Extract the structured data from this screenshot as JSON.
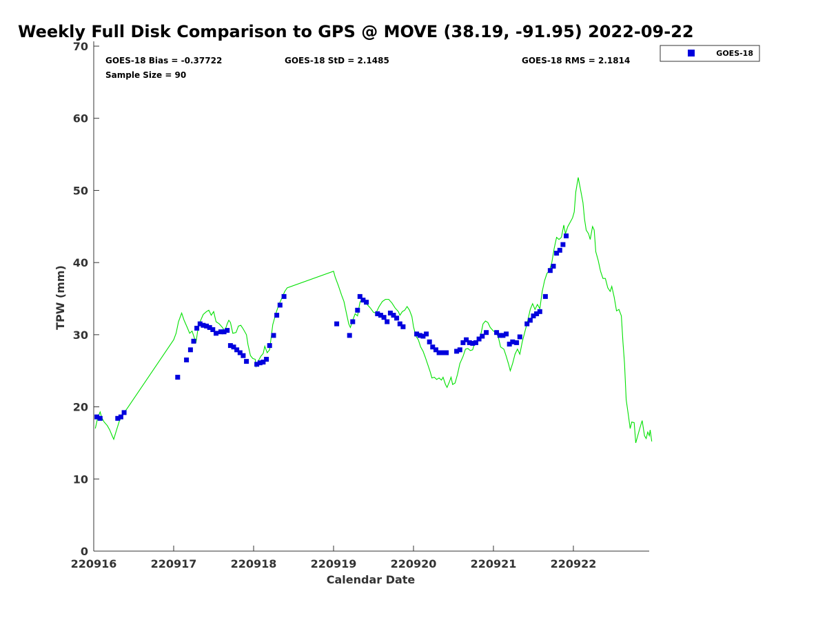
{
  "chart_data": {
    "type": "scatter",
    "title": "Weekly Full Disk Comparison to GPS @ MOVE (38.19, -91.95) 2022-09-22",
    "xlabel": "Calendar Date",
    "ylabel": "TPW (mm)",
    "xlim": [
      0,
      6.95
    ],
    "ylim": [
      0,
      70
    ],
    "x_unit_note": "",
    "x_ticks": [
      {
        "value": 0,
        "label": "220916"
      },
      {
        "value": 1,
        "label": "220917"
      },
      {
        "value": 2,
        "label": "220918"
      },
      {
        "value": 3,
        "label": "220919"
      },
      {
        "value": 4,
        "label": "220920"
      },
      {
        "value": 5,
        "label": "220921"
      },
      {
        "value": 6,
        "label": "220922"
      }
    ],
    "y_ticks": [
      0,
      10,
      20,
      30,
      40,
      50,
      60,
      70
    ],
    "grid": false,
    "legend": {
      "position": "outside-top-right",
      "entries": [
        {
          "label": "GOES-18",
          "color": "#0000dd",
          "marker": "square"
        }
      ]
    },
    "stats": {
      "bias": "GOES-18 Bias = -0.37722",
      "std": "GOES-18 StD = 2.1485",
      "rms": "GOES-18 RMS = 2.1814",
      "sample_size": "Sample Size = 90"
    },
    "series": [
      {
        "name": "GOES-18",
        "kind": "scatter",
        "color": "#0000dd",
        "points": [
          [
            0.04,
            18.6
          ],
          [
            0.08,
            18.4
          ],
          [
            0.3,
            18.4
          ],
          [
            0.34,
            18.6
          ],
          [
            0.38,
            19.2
          ],
          [
            1.05,
            24.1
          ],
          [
            1.16,
            26.5
          ],
          [
            1.21,
            27.9
          ],
          [
            1.25,
            29.1
          ],
          [
            1.29,
            30.9
          ],
          [
            1.33,
            31.5
          ],
          [
            1.37,
            31.3
          ],
          [
            1.41,
            31.2
          ],
          [
            1.45,
            31.0
          ],
          [
            1.49,
            30.7
          ],
          [
            1.53,
            30.2
          ],
          [
            1.59,
            30.4
          ],
          [
            1.63,
            30.4
          ],
          [
            1.67,
            30.6
          ],
          [
            1.71,
            28.5
          ],
          [
            1.75,
            28.3
          ],
          [
            1.79,
            27.9
          ],
          [
            1.83,
            27.5
          ],
          [
            1.87,
            27.1
          ],
          [
            1.91,
            26.3
          ],
          [
            2.04,
            25.9
          ],
          [
            2.08,
            26.1
          ],
          [
            2.12,
            26.2
          ],
          [
            2.16,
            26.6
          ],
          [
            2.2,
            28.5
          ],
          [
            2.25,
            29.9
          ],
          [
            2.29,
            32.7
          ],
          [
            2.33,
            34.1
          ],
          [
            2.38,
            35.3
          ],
          [
            3.04,
            31.5
          ],
          [
            3.2,
            29.9
          ],
          [
            3.24,
            31.8
          ],
          [
            3.3,
            33.4
          ],
          [
            3.33,
            35.3
          ],
          [
            3.37,
            34.8
          ],
          [
            3.41,
            34.5
          ],
          [
            3.55,
            32.9
          ],
          [
            3.59,
            32.7
          ],
          [
            3.63,
            32.4
          ],
          [
            3.67,
            31.8
          ],
          [
            3.71,
            33.0
          ],
          [
            3.75,
            32.7
          ],
          [
            3.79,
            32.3
          ],
          [
            3.83,
            31.5
          ],
          [
            3.87,
            31.1
          ],
          [
            4.04,
            30.1
          ],
          [
            4.08,
            29.9
          ],
          [
            4.12,
            29.8
          ],
          [
            4.16,
            30.1
          ],
          [
            4.2,
            29.0
          ],
          [
            4.24,
            28.3
          ],
          [
            4.28,
            27.9
          ],
          [
            4.32,
            27.5
          ],
          [
            4.36,
            27.5
          ],
          [
            4.41,
            27.5
          ],
          [
            4.54,
            27.7
          ],
          [
            4.58,
            27.9
          ],
          [
            4.62,
            28.9
          ],
          [
            4.66,
            29.3
          ],
          [
            4.7,
            28.9
          ],
          [
            4.74,
            28.8
          ],
          [
            4.78,
            28.9
          ],
          [
            4.82,
            29.4
          ],
          [
            4.86,
            29.8
          ],
          [
            4.91,
            30.3
          ],
          [
            5.04,
            30.3
          ],
          [
            5.08,
            29.9
          ],
          [
            5.12,
            29.9
          ],
          [
            5.16,
            30.1
          ],
          [
            5.2,
            28.7
          ],
          [
            5.24,
            29.0
          ],
          [
            5.29,
            28.9
          ],
          [
            5.33,
            29.7
          ],
          [
            5.42,
            31.5
          ],
          [
            5.46,
            32.0
          ],
          [
            5.5,
            32.6
          ],
          [
            5.54,
            32.9
          ],
          [
            5.58,
            33.2
          ],
          [
            5.65,
            35.3
          ],
          [
            5.71,
            38.9
          ],
          [
            5.75,
            39.5
          ],
          [
            5.79,
            41.3
          ],
          [
            5.83,
            41.7
          ],
          [
            5.87,
            42.5
          ],
          [
            5.91,
            43.7
          ]
        ]
      },
      {
        "name": "",
        "kind": "line",
        "color": "#00e000",
        "points": [
          [
            0.02,
            17.0
          ],
          [
            0.05,
            18.5
          ],
          [
            0.08,
            19.3
          ],
          [
            0.1,
            18.5
          ],
          [
            0.13,
            17.9
          ],
          [
            0.17,
            17.4
          ],
          [
            0.2,
            16.8
          ],
          [
            0.23,
            16.0
          ],
          [
            0.25,
            15.5
          ],
          [
            0.28,
            16.6
          ],
          [
            0.32,
            18.0
          ],
          [
            0.36,
            18.9
          ],
          [
            0.42,
            19.8
          ],
          [
            1.0,
            29.3
          ],
          [
            1.03,
            30.2
          ],
          [
            1.06,
            31.8
          ],
          [
            1.1,
            33.0
          ],
          [
            1.13,
            32.0
          ],
          [
            1.17,
            31.0
          ],
          [
            1.2,
            30.2
          ],
          [
            1.23,
            30.5
          ],
          [
            1.26,
            29.5
          ],
          [
            1.28,
            29.0
          ],
          [
            1.3,
            30.5
          ],
          [
            1.33,
            31.8
          ],
          [
            1.37,
            32.8
          ],
          [
            1.41,
            33.2
          ],
          [
            1.44,
            33.4
          ],
          [
            1.47,
            32.7
          ],
          [
            1.5,
            33.2
          ],
          [
            1.53,
            31.8
          ],
          [
            1.57,
            31.5
          ],
          [
            1.61,
            31.0
          ],
          [
            1.64,
            30.5
          ],
          [
            1.67,
            31.5
          ],
          [
            1.69,
            32.0
          ],
          [
            1.71,
            31.7
          ],
          [
            1.74,
            30.2
          ],
          [
            1.78,
            30.3
          ],
          [
            1.81,
            31.2
          ],
          [
            1.84,
            31.3
          ],
          [
            1.87,
            30.8
          ],
          [
            1.91,
            30.0
          ],
          [
            1.93,
            28.6
          ],
          [
            1.96,
            27.1
          ],
          [
            1.99,
            26.7
          ],
          [
            2.02,
            26.6
          ],
          [
            2.03,
            25.6
          ],
          [
            2.06,
            26.4
          ],
          [
            2.09,
            27.0
          ],
          [
            2.12,
            27.4
          ],
          [
            2.14,
            28.4
          ],
          [
            2.17,
            27.5
          ],
          [
            2.2,
            27.9
          ],
          [
            2.24,
            31.4
          ],
          [
            2.28,
            33.0
          ],
          [
            2.31,
            34.0
          ],
          [
            2.35,
            35.0
          ],
          [
            2.39,
            36.0
          ],
          [
            2.42,
            36.5
          ],
          [
            3.0,
            38.8
          ],
          [
            3.02,
            38.0
          ],
          [
            3.06,
            36.8
          ],
          [
            3.1,
            35.5
          ],
          [
            3.13,
            34.6
          ],
          [
            3.16,
            33.0
          ],
          [
            3.19,
            31.5
          ],
          [
            3.21,
            31.0
          ],
          [
            3.24,
            32.0
          ],
          [
            3.27,
            32.9
          ],
          [
            3.3,
            32.6
          ],
          [
            3.33,
            34.5
          ],
          [
            3.36,
            35.0
          ],
          [
            3.39,
            34.9
          ],
          [
            3.42,
            34.2
          ],
          [
            3.46,
            33.7
          ],
          [
            3.5,
            33.1
          ],
          [
            3.53,
            33.0
          ],
          [
            3.57,
            33.9
          ],
          [
            3.61,
            34.6
          ],
          [
            3.65,
            34.9
          ],
          [
            3.69,
            34.9
          ],
          [
            3.73,
            34.4
          ],
          [
            3.77,
            33.7
          ],
          [
            3.81,
            33.2
          ],
          [
            3.83,
            32.7
          ],
          [
            3.86,
            33.2
          ],
          [
            3.89,
            33.4
          ],
          [
            3.92,
            33.9
          ],
          [
            3.95,
            33.4
          ],
          [
            3.98,
            32.5
          ],
          [
            4.0,
            31.1
          ],
          [
            4.03,
            29.8
          ],
          [
            4.06,
            29.3
          ],
          [
            4.09,
            28.3
          ],
          [
            4.12,
            27.7
          ],
          [
            4.15,
            26.8
          ],
          [
            4.18,
            25.8
          ],
          [
            4.21,
            24.8
          ],
          [
            4.23,
            24.0
          ],
          [
            4.26,
            24.1
          ],
          [
            4.29,
            23.8
          ],
          [
            4.32,
            24.0
          ],
          [
            4.35,
            23.7
          ],
          [
            4.37,
            24.1
          ],
          [
            4.4,
            23.1
          ],
          [
            4.42,
            22.7
          ],
          [
            4.45,
            23.5
          ],
          [
            4.47,
            24.1
          ],
          [
            4.49,
            23.1
          ],
          [
            4.52,
            23.3
          ],
          [
            4.55,
            24.5
          ],
          [
            4.58,
            26.0
          ],
          [
            4.62,
            27.0
          ],
          [
            4.65,
            28.0
          ],
          [
            4.68,
            28.1
          ],
          [
            4.71,
            27.8
          ],
          [
            4.74,
            27.9
          ],
          [
            4.77,
            29.0
          ],
          [
            4.81,
            29.3
          ],
          [
            4.84,
            29.9
          ],
          [
            4.87,
            31.5
          ],
          [
            4.9,
            31.9
          ],
          [
            4.93,
            31.7
          ],
          [
            4.96,
            31.0
          ],
          [
            5.0,
            30.5
          ],
          [
            5.03,
            30.3
          ],
          [
            5.06,
            29.7
          ],
          [
            5.09,
            28.3
          ],
          [
            5.13,
            28.0
          ],
          [
            5.16,
            27.0
          ],
          [
            5.19,
            25.9
          ],
          [
            5.21,
            25.0
          ],
          [
            5.24,
            26.0
          ],
          [
            5.27,
            27.3
          ],
          [
            5.3,
            28.0
          ],
          [
            5.33,
            27.3
          ],
          [
            5.36,
            29.0
          ],
          [
            5.4,
            30.7
          ],
          [
            5.43,
            32.0
          ],
          [
            5.46,
            33.5
          ],
          [
            5.49,
            34.3
          ],
          [
            5.52,
            33.5
          ],
          [
            5.55,
            34.2
          ],
          [
            5.58,
            33.6
          ],
          [
            5.61,
            36.0
          ],
          [
            5.64,
            37.5
          ],
          [
            5.67,
            38.5
          ],
          [
            5.7,
            38.9
          ],
          [
            5.73,
            40.0
          ],
          [
            5.76,
            42.0
          ],
          [
            5.79,
            43.5
          ],
          [
            5.82,
            43.2
          ],
          [
            5.85,
            43.5
          ],
          [
            5.88,
            45.2
          ],
          [
            5.9,
            44.0
          ],
          [
            5.93,
            45.0
          ],
          [
            5.96,
            45.6
          ],
          [
            5.99,
            46.2
          ],
          [
            6.01,
            47.0
          ],
          [
            6.03,
            49.8
          ],
          [
            6.06,
            51.8
          ],
          [
            6.09,
            50.1
          ],
          [
            6.12,
            48.3
          ],
          [
            6.14,
            46.0
          ],
          [
            6.16,
            44.5
          ],
          [
            6.19,
            44.0
          ],
          [
            6.21,
            43.2
          ],
          [
            6.24,
            45.0
          ],
          [
            6.26,
            44.5
          ],
          [
            6.28,
            41.5
          ],
          [
            6.31,
            40.3
          ],
          [
            6.34,
            38.8
          ],
          [
            6.37,
            37.8
          ],
          [
            6.4,
            37.8
          ],
          [
            6.43,
            36.5
          ],
          [
            6.46,
            36.0
          ],
          [
            6.48,
            36.7
          ],
          [
            6.51,
            35.2
          ],
          [
            6.54,
            33.3
          ],
          [
            6.57,
            33.5
          ],
          [
            6.6,
            32.6
          ],
          [
            6.62,
            29.0
          ],
          [
            6.64,
            26.0
          ],
          [
            6.66,
            21.0
          ],
          [
            6.69,
            18.7
          ],
          [
            6.71,
            17.0
          ],
          [
            6.73,
            17.9
          ],
          [
            6.76,
            17.8
          ],
          [
            6.78,
            15.0
          ],
          [
            6.8,
            15.8
          ],
          [
            6.83,
            17.0
          ],
          [
            6.86,
            18.1
          ],
          [
            6.89,
            16.0
          ],
          [
            6.91,
            15.6
          ],
          [
            6.93,
            16.5
          ],
          [
            6.95,
            16.0
          ],
          [
            6.96,
            16.8
          ],
          [
            6.98,
            15.2
          ]
        ]
      }
    ]
  }
}
